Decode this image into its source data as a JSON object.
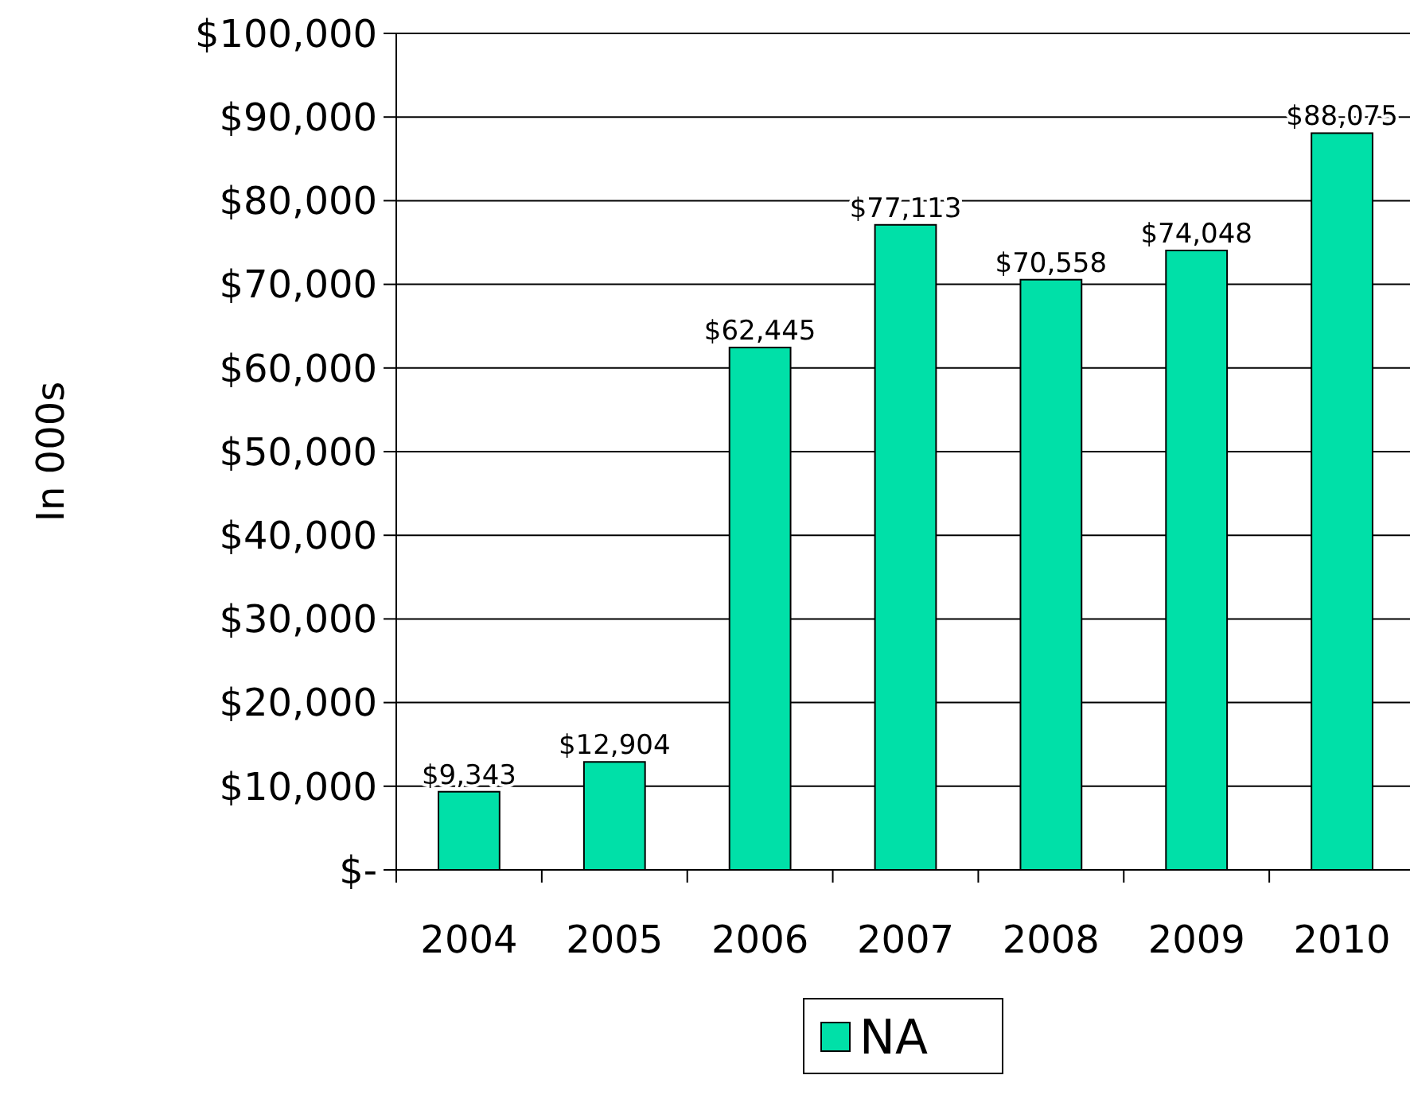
{
  "chart_data": {
    "type": "bar",
    "ylabel": "In 000s",
    "categories": [
      "2004",
      "2005",
      "2006",
      "2007",
      "2008",
      "2009",
      "2010"
    ],
    "series": [
      {
        "name": "NA",
        "color": "#00e0a8",
        "values": [
          9343,
          12904,
          62445,
          77113,
          70558,
          74048,
          88075
        ],
        "value_labels": [
          "$9,343",
          "$12,904",
          "$62,445",
          "$77,113",
          "$70,558",
          "$74,048",
          "$88,075"
        ]
      }
    ],
    "ylim": [
      0,
      100000
    ],
    "yticks": [
      {
        "value": 0,
        "label": "$-"
      },
      {
        "value": 10000,
        "label": "$10,000"
      },
      {
        "value": 20000,
        "label": "$20,000"
      },
      {
        "value": 30000,
        "label": "$30,000"
      },
      {
        "value": 40000,
        "label": "$40,000"
      },
      {
        "value": 50000,
        "label": "$50,000"
      },
      {
        "value": 60000,
        "label": "$60,000"
      },
      {
        "value": 70000,
        "label": "$70,000"
      },
      {
        "value": 80000,
        "label": "$80,000"
      },
      {
        "value": 90000,
        "label": "$90,000"
      },
      {
        "value": 100000,
        "label": "$100,000"
      }
    ],
    "grid": "y",
    "legend": "bottom"
  }
}
